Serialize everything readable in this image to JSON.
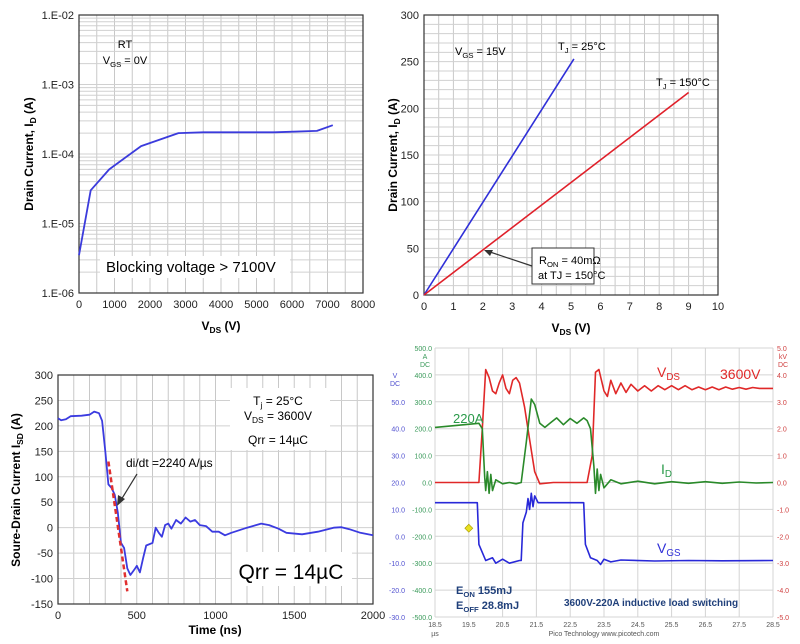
{
  "chart_data": [
    {
      "type": "line",
      "xlabel": [
        "V",
        "DS",
        " (V)"
      ],
      "ylabel": [
        "Drain Current, I",
        "D",
        " (A)"
      ],
      "xlim": [
        0,
        8000
      ],
      "ylim": [
        1e-06,
        0.01
      ],
      "y_scale": "log",
      "grid": true,
      "x_ticks": [
        "0",
        "1000",
        "2000",
        "3000",
        "4000",
        "5000",
        "6000",
        "7000",
        "8000"
      ],
      "y_ticks": [
        "1.E-06",
        "1.E-05",
        "1.E-04",
        "1.E-03",
        "1.E-02"
      ],
      "annotations": [
        [
          "RT"
        ],
        [
          "V",
          "GS",
          " = 0V"
        ],
        [
          "Blocking voltage > 7100V"
        ]
      ],
      "series": [
        {
          "color": "#3b3bdc",
          "points": [
            [
              0,
              3.5e-06
            ],
            [
              330,
              3e-05
            ],
            [
              850,
              6e-05
            ],
            [
              1750,
              0.00013
            ],
            [
              2800,
              0.0002
            ],
            [
              3500,
              0.000205
            ],
            [
              5500,
              0.000205
            ],
            [
              6700,
              0.000215
            ],
            [
              7150,
              0.00026
            ]
          ]
        }
      ]
    },
    {
      "type": "line",
      "xlabel": [
        "V",
        "DS",
        " (V)"
      ],
      "ylabel": [
        "Drain Current, I",
        "D",
        " (A)"
      ],
      "xlim": [
        0,
        10
      ],
      "ylim": [
        0,
        300
      ],
      "grid": true,
      "x_ticks": [
        "0",
        "1",
        "2",
        "3",
        "4",
        "5",
        "6",
        "7",
        "8",
        "9",
        "10"
      ],
      "y_ticks": [
        "0",
        "50",
        "100",
        "150",
        "200",
        "250",
        "300"
      ],
      "annotations": [
        [
          "V",
          "GS",
          " = 15V"
        ],
        [
          "T",
          "J",
          " = 25°C"
        ],
        [
          "T",
          "J",
          " = 150°C"
        ],
        [
          "R",
          "ON",
          " = 40mΩ"
        ],
        [
          "at TJ = 150°C"
        ]
      ],
      "series": [
        {
          "name": "T_J = 25°C",
          "color": "#2f2fd8",
          "points": [
            [
              0,
              0
            ],
            [
              5.1,
              253
            ]
          ]
        },
        {
          "name": "T_J = 150°C",
          "color": "#e0202a",
          "points": [
            [
              0,
              0
            ],
            [
              9,
              217
            ]
          ]
        }
      ]
    },
    {
      "type": "line",
      "xlabel": [
        "Time (ns)"
      ],
      "ylabel": [
        "Soure-Drain Current I",
        "SD",
        " (A)"
      ],
      "xlim": [
        0,
        2000
      ],
      "ylim": [
        -150,
        300
      ],
      "grid": true,
      "x_ticks": [
        "0",
        "500",
        "1000",
        "1500",
        "2000"
      ],
      "y_ticks": [
        "-150",
        "-100",
        "-50",
        "0",
        "50",
        "100",
        "150",
        "200",
        "250",
        "300"
      ],
      "annotations": [
        [
          "T",
          "j",
          " = 25°C"
        ],
        [
          "V",
          "DS",
          " = 3600V"
        ],
        [
          "Qrr = 14µC"
        ],
        [
          "di/dt =2240 A/µs"
        ],
        [
          "Qrr = 14µC"
        ]
      ],
      "series": [
        {
          "color": "#3b3be0",
          "points": [
            [
              0,
              215
            ],
            [
              20,
              211
            ],
            [
              50,
              213
            ],
            [
              80,
              219
            ],
            [
              150,
              220
            ],
            [
              200,
              222
            ],
            [
              230,
              228
            ],
            [
              260,
              225
            ],
            [
              280,
              210
            ],
            [
              300,
              150
            ],
            [
              320,
              85
            ],
            [
              340,
              78
            ],
            [
              360,
              65
            ],
            [
              380,
              30
            ],
            [
              400,
              -30
            ],
            [
              420,
              -40
            ],
            [
              440,
              -80
            ],
            [
              460,
              -93
            ],
            [
              490,
              -80
            ],
            [
              500,
              -75
            ],
            [
              520,
              -88
            ],
            [
              540,
              -60
            ],
            [
              560,
              -35
            ],
            [
              600,
              -30
            ],
            [
              620,
              0
            ],
            [
              640,
              -10
            ],
            [
              660,
              -18
            ],
            [
              680,
              5
            ],
            [
              700,
              8
            ],
            [
              720,
              -2
            ],
            [
              750,
              15
            ],
            [
              780,
              8
            ],
            [
              810,
              20
            ],
            [
              840,
              12
            ],
            [
              870,
              15
            ],
            [
              900,
              5
            ],
            [
              940,
              3
            ],
            [
              980,
              -8
            ],
            [
              1020,
              -8
            ],
            [
              1060,
              -15
            ],
            [
              1100,
              -10
            ],
            [
              1200,
              0
            ],
            [
              1290,
              8
            ],
            [
              1340,
              5
            ],
            [
              1400,
              -2
            ],
            [
              1450,
              -10
            ],
            [
              1550,
              -13
            ],
            [
              1650,
              -8
            ],
            [
              1750,
              0
            ],
            [
              1800,
              1
            ],
            [
              1850,
              -3
            ],
            [
              1920,
              -10
            ],
            [
              2000,
              -15
            ]
          ]
        },
        {
          "name": "di/dt",
          "color": "#e03030",
          "dashed": true,
          "points": [
            [
              320,
              130
            ],
            [
              440,
              -125
            ]
          ]
        }
      ]
    },
    {
      "type": "line",
      "xlim": [
        18.5,
        28.5
      ],
      "x_unit": "µs",
      "x_ticks": [
        "18.5",
        "19.5",
        "20.5",
        "21.5",
        "22.5",
        "23.5",
        "24.5",
        "25.5",
        "26.5",
        "27.5",
        "28.5"
      ],
      "left_a_unit": [
        "A",
        "DC"
      ],
      "left_a_ticks": [
        "500.0",
        "400.0",
        "300.0",
        "200.0",
        "100.0",
        "0.0",
        "-100.0",
        "-200.0",
        "-300.0",
        "-400.0",
        "-500.0"
      ],
      "left_v_unit": [
        "V",
        "DC"
      ],
      "left_v_ticks": [
        "50.0",
        "40.0",
        "30.0",
        "20.0",
        "10.0",
        "0.0",
        "-10.0",
        "-20.0",
        "-30.0"
      ],
      "right_unit": [
        "kV",
        "DC"
      ],
      "right_ticks": [
        "5.0",
        "4.0",
        "3.0",
        "2.0",
        "1.0",
        "0.0",
        "-1.0",
        "-2.0",
        "-3.0",
        "-4.0",
        "-5.0"
      ],
      "footer": "Pico Technology   www.picotech.com",
      "annotations": [
        [
          "V",
          "DS",
          ""
        ],
        [
          "3600V"
        ],
        [
          "220A"
        ],
        [
          "I",
          "D",
          ""
        ],
        [
          "V",
          "GS",
          ""
        ],
        [
          "E",
          "ON",
          " 155mJ"
        ],
        [
          "E",
          "OFF",
          " 28.8mJ"
        ],
        [
          "3600V-220A inductive load switching"
        ]
      ],
      "marker": {
        "color": "#e8e020",
        "point": [
          19.5,
          3
        ]
      },
      "series": [
        {
          "name": "VDS",
          "axis": "kV",
          "ylim": [
            -5,
            5
          ],
          "color": "#e02828",
          "points": [
            [
              18.5,
              0
            ],
            [
              19.8,
              0
            ],
            [
              19.9,
              2.0
            ],
            [
              20.0,
              4.2
            ],
            [
              20.1,
              3.9
            ],
            [
              20.2,
              3.4
            ],
            [
              20.3,
              3.3
            ],
            [
              20.4,
              3.7
            ],
            [
              20.5,
              4.0
            ],
            [
              20.6,
              3.5
            ],
            [
              20.7,
              3.3
            ],
            [
              20.8,
              3.8
            ],
            [
              20.9,
              3.9
            ],
            [
              21.0,
              3.7
            ],
            [
              21.15,
              2.8
            ],
            [
              21.3,
              1.6
            ],
            [
              21.45,
              0.4
            ],
            [
              21.6,
              -0.05
            ],
            [
              22.0,
              0
            ],
            [
              23.0,
              0
            ],
            [
              23.15,
              1.0
            ],
            [
              23.25,
              4.1
            ],
            [
              23.35,
              4.2
            ],
            [
              23.5,
              3.4
            ],
            [
              23.6,
              3.2
            ],
            [
              23.7,
              3.8
            ],
            [
              23.85,
              3.3
            ],
            [
              24.0,
              3.7
            ],
            [
              24.15,
              3.35
            ],
            [
              24.3,
              3.65
            ],
            [
              24.5,
              3.4
            ],
            [
              24.7,
              3.6
            ],
            [
              24.9,
              3.4
            ],
            [
              25.1,
              3.6
            ],
            [
              25.3,
              3.45
            ],
            [
              25.5,
              3.6
            ],
            [
              25.7,
              3.45
            ],
            [
              25.9,
              3.6
            ],
            [
              26.1,
              3.45
            ],
            [
              26.3,
              3.55
            ],
            [
              26.5,
              3.45
            ],
            [
              26.7,
              3.55
            ],
            [
              26.9,
              3.45
            ],
            [
              27.1,
              3.55
            ],
            [
              27.3,
              3.47
            ],
            [
              27.5,
              3.53
            ],
            [
              27.7,
              3.47
            ],
            [
              27.9,
              3.53
            ],
            [
              28.1,
              3.5
            ],
            [
              28.5,
              3.5
            ]
          ]
        },
        {
          "name": "ID",
          "axis": "A",
          "ylim": [
            -500,
            500
          ],
          "color": "#2a8a2a",
          "points": [
            [
              18.5,
              205
            ],
            [
              19.8,
              220
            ],
            [
              19.9,
              200
            ],
            [
              19.97,
              20
            ],
            [
              20.0,
              -30
            ],
            [
              20.05,
              40
            ],
            [
              20.1,
              -40
            ],
            [
              20.15,
              30
            ],
            [
              20.2,
              -30
            ],
            [
              20.3,
              10
            ],
            [
              20.5,
              -5
            ],
            [
              20.7,
              0
            ],
            [
              20.9,
              -5
            ],
            [
              21.05,
              0
            ],
            [
              21.2,
              150
            ],
            [
              21.35,
              310
            ],
            [
              21.45,
              290
            ],
            [
              21.6,
              220
            ],
            [
              21.75,
              205
            ],
            [
              21.9,
              220
            ],
            [
              22.1,
              240
            ],
            [
              22.3,
              215
            ],
            [
              22.5,
              238
            ],
            [
              22.7,
              220
            ],
            [
              22.9,
              240
            ],
            [
              23.0,
              230
            ],
            [
              23.1,
              200
            ],
            [
              23.2,
              60
            ],
            [
              23.25,
              -40
            ],
            [
              23.3,
              50
            ],
            [
              23.35,
              -30
            ],
            [
              23.4,
              30
            ],
            [
              23.5,
              -20
            ],
            [
              23.7,
              10
            ],
            [
              24.0,
              -5
            ],
            [
              24.5,
              5
            ],
            [
              25,
              -5
            ],
            [
              25.5,
              3
            ],
            [
              26,
              -3
            ],
            [
              26.5,
              3
            ],
            [
              27,
              -3
            ],
            [
              27.5,
              2
            ],
            [
              28,
              -2
            ],
            [
              28.5,
              0
            ]
          ]
        },
        {
          "name": "VGS",
          "axis": "V",
          "ylim": [
            -30,
            70
          ],
          "color": "#2828d8",
          "points": [
            [
              18.5,
              12.5
            ],
            [
              19.75,
              12.5
            ],
            [
              19.8,
              -3
            ],
            [
              19.9,
              -6
            ],
            [
              20.0,
              -9
            ],
            [
              20.2,
              -8
            ],
            [
              20.3,
              -10
            ],
            [
              20.5,
              -8.5
            ],
            [
              20.7,
              -10
            ],
            [
              21.0,
              -9
            ],
            [
              21.05,
              -9
            ],
            [
              21.1,
              5
            ],
            [
              21.2,
              9
            ],
            [
              21.25,
              14
            ],
            [
              21.3,
              10
            ],
            [
              21.35,
              16
            ],
            [
              21.4,
              11
            ],
            [
              21.45,
              15
            ],
            [
              21.55,
              12.5
            ],
            [
              22.9,
              12.5
            ],
            [
              22.95,
              -3
            ],
            [
              23.1,
              -8
            ],
            [
              23.3,
              -9
            ],
            [
              23.4,
              -10.5
            ],
            [
              23.5,
              -8.5
            ],
            [
              23.7,
              -9.5
            ],
            [
              24.0,
              -8.8
            ],
            [
              25,
              -9.2
            ],
            [
              26,
              -9
            ],
            [
              27,
              -9.1
            ],
            [
              28.5,
              -9
            ]
          ]
        }
      ]
    }
  ]
}
